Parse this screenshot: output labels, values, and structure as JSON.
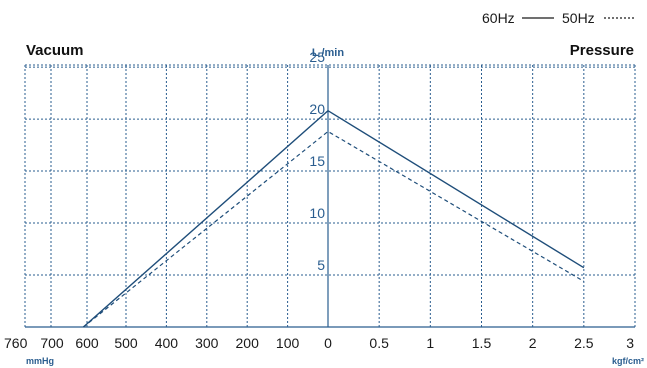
{
  "chart_data": {
    "type": "line",
    "left_label": "Vacuum",
    "right_label": "Pressure",
    "ylabel": "L /min",
    "y_ticks": [
      "5",
      "10",
      "15",
      "20",
      "25"
    ],
    "ylim": [
      0,
      27.5
    ],
    "vacuum_axis": {
      "unit": "mmHg",
      "ticks": [
        "760",
        "700",
        "600",
        "500",
        "400",
        "300",
        "200",
        "100",
        "0"
      ],
      "range": [
        760,
        0
      ]
    },
    "pressure_axis": {
      "unit": "kgf/cm²",
      "ticks": [
        "0.5",
        "1",
        "1.5",
        "2",
        "2.5",
        "3"
      ],
      "range": [
        0,
        3
      ]
    },
    "legend": [
      {
        "label": "60Hz",
        "style": "solid"
      },
      {
        "label": "50Hz",
        "style": "dotted"
      }
    ],
    "series": [
      {
        "name": "60Hz",
        "style": "solid",
        "vacuum_points": [
          {
            "x": 610,
            "y": 0
          },
          {
            "x": 0,
            "y": 20.8
          }
        ],
        "pressure_points": [
          {
            "x": 0,
            "y": 20.8
          },
          {
            "x": 2.5,
            "y": 5.7
          }
        ]
      },
      {
        "name": "50Hz",
        "style": "dotted",
        "vacuum_points": [
          {
            "x": 610,
            "y": 0
          },
          {
            "x": 0,
            "y": 18.8
          }
        ],
        "pressure_points": [
          {
            "x": 0,
            "y": 18.8
          },
          {
            "x": 2.5,
            "y": 4.4
          }
        ]
      }
    ],
    "grid": true,
    "line_color": "#1f4e7a",
    "grid_color": "#2a5d8f"
  }
}
